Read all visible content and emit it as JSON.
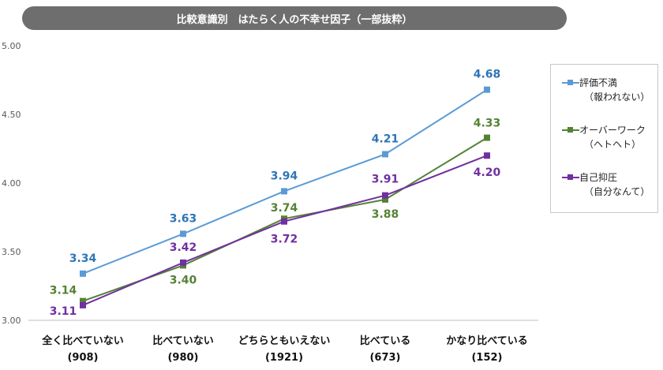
{
  "title": "比較意識別　はたらく人の不幸せ因子（一部抜粋）",
  "colors": {
    "series1": "#5b9bd5",
    "series2": "#548235",
    "series3": "#7030a0",
    "label1": "#2e75b6"
  },
  "legend": [
    {
      "name": "評価不満",
      "sub": "（報われない）"
    },
    {
      "name": "オーバーワーク",
      "sub": "（ヘトヘト）"
    },
    {
      "name": "自己抑圧",
      "sub": "（自分なんて）"
    }
  ],
  "chart_data": {
    "type": "line",
    "title": "比較意識別　はたらく人の不幸せ因子（一部抜粋）",
    "categories": [
      "全く比べていない",
      "比べていない",
      "どちらともいえない",
      "比べている",
      "かなり比べている"
    ],
    "category_counts": [
      "(908)",
      "(980)",
      "(1921)",
      "(673)",
      "(152)"
    ],
    "ylim": [
      3.0,
      5.0
    ],
    "yticks": [
      "3.00",
      "3.50",
      "4.00",
      "4.50",
      "5.00"
    ],
    "grid": false,
    "legend_position": "right",
    "series": [
      {
        "name": "評価不満（報われない）",
        "values": [
          3.34,
          3.63,
          3.94,
          4.21,
          4.68
        ],
        "labels": [
          "3.34",
          "3.63",
          "3.94",
          "4.21",
          "4.68"
        ]
      },
      {
        "name": "オーバーワーク（ヘトヘト）",
        "values": [
          3.14,
          3.4,
          3.74,
          3.88,
          4.33
        ],
        "labels": [
          "3.14",
          "3.40",
          "3.74",
          "3.88",
          "4.33"
        ]
      },
      {
        "name": "自己抑圧（自分なんて）",
        "values": [
          3.11,
          3.42,
          3.72,
          3.91,
          4.2
        ],
        "labels": [
          "3.11",
          "3.42",
          "3.72",
          "3.91",
          "4.20"
        ]
      }
    ]
  }
}
